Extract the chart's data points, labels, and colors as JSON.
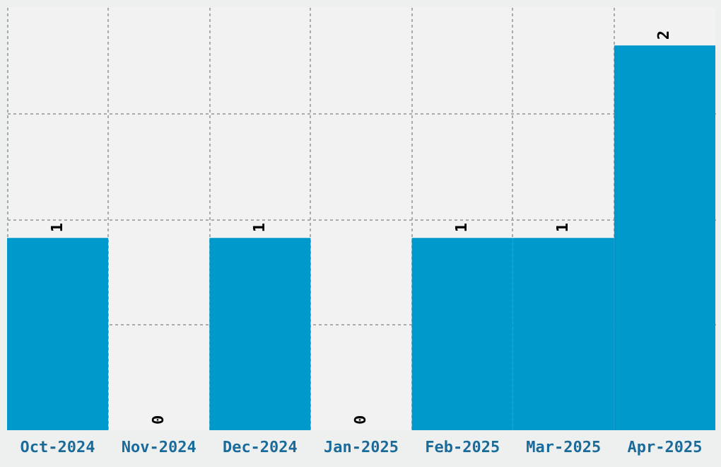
{
  "chart_data": {
    "type": "bar",
    "categories": [
      "Oct-2024",
      "Nov-2024",
      "Dec-2024",
      "Jan-2025",
      "Feb-2025",
      "Mar-2025",
      "Apr-2025"
    ],
    "values": [
      1,
      0,
      1,
      0,
      1,
      1,
      2
    ],
    "color": "#0099cc",
    "ylim": [
      0,
      2.2
    ],
    "yticks": [
      {
        "value": 0.55,
        "label": null
      },
      {
        "value": 1.1,
        "label": null
      },
      {
        "value": 1.65,
        "label": null
      }
    ],
    "tick_labels": "x",
    "grid": true,
    "data_labels": true
  }
}
